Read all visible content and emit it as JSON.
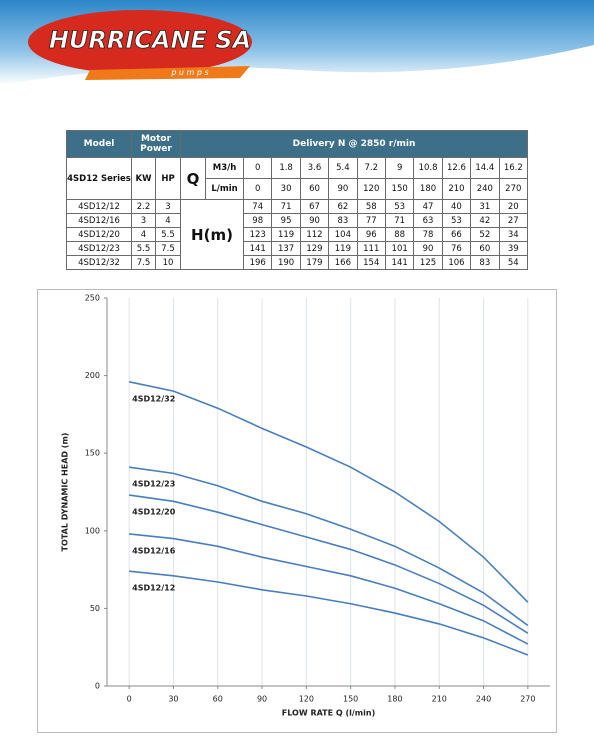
{
  "header": {
    "brand": "HURRICANE SA",
    "tagline": "p u m p s"
  },
  "table": {
    "head": {
      "model": "Model",
      "motor_power": "Motor Power",
      "delivery": "Delivery N @ 2850 r/min"
    },
    "sub": {
      "series": "4SD12 Series",
      "kw": "KW",
      "hp": "HP",
      "q": "Q",
      "m3h": "M3/h",
      "lmin": "L/min",
      "head": "H(m)"
    },
    "m3h": [
      0,
      1.8,
      3.6,
      5.4,
      7.2,
      9,
      10.8,
      12.6,
      14.4,
      16.2
    ],
    "lmin": [
      0,
      30,
      60,
      90,
      120,
      150,
      180,
      210,
      240,
      270
    ],
    "rows": [
      [
        "4SD12/12",
        2.2,
        3,
        74,
        71,
        67,
        62,
        58,
        53,
        47,
        40,
        31,
        20
      ],
      [
        "4SD12/16",
        3,
        4,
        98,
        95,
        90,
        83,
        77,
        71,
        63,
        53,
        42,
        27
      ],
      [
        "4SD12/20",
        4,
        5.5,
        123,
        119,
        112,
        104,
        96,
        88,
        78,
        66,
        52,
        34
      ],
      [
        "4SD12/23",
        5.5,
        7.5,
        141,
        137,
        129,
        119,
        111,
        101,
        90,
        76,
        60,
        39
      ],
      [
        "4SD12/32",
        7.5,
        10,
        196,
        190,
        179,
        166,
        154,
        141,
        125,
        106,
        83,
        54
      ]
    ]
  },
  "chart_data": {
    "type": "line",
    "x_label": "FLOW RATE Q (l/min)",
    "y_label": "TOTAL DYNAMIC HEAD (m)",
    "x": [
      0,
      30,
      60,
      90,
      120,
      150,
      180,
      210,
      240,
      270
    ],
    "xlim": [
      -15,
      285
    ],
    "xticks": [
      0,
      30,
      60,
      90,
      120,
      150,
      180,
      210,
      240,
      270
    ],
    "ylim": [
      0,
      250
    ],
    "yticks": [
      0,
      50,
      100,
      150,
      200,
      250
    ],
    "grid": "x",
    "series": [
      {
        "name": "4SD12/12",
        "color": "#4a7ebb",
        "values": [
          74,
          71,
          67,
          62,
          58,
          53,
          47,
          40,
          31,
          20
        ]
      },
      {
        "name": "4SD12/16",
        "color": "#4a7ebb",
        "values": [
          98,
          95,
          90,
          83,
          77,
          71,
          63,
          53,
          42,
          27
        ]
      },
      {
        "name": "4SD12/20",
        "color": "#4a7ebb",
        "values": [
          123,
          119,
          112,
          104,
          96,
          88,
          78,
          66,
          52,
          34
        ]
      },
      {
        "name": "4SD12/23",
        "color": "#4a7ebb",
        "values": [
          141,
          137,
          129,
          119,
          111,
          101,
          90,
          76,
          60,
          39
        ]
      },
      {
        "name": "4SD12/32",
        "color": "#4a7ebb",
        "values": [
          196,
          190,
          179,
          166,
          154,
          141,
          125,
          106,
          83,
          54
        ]
      }
    ]
  }
}
